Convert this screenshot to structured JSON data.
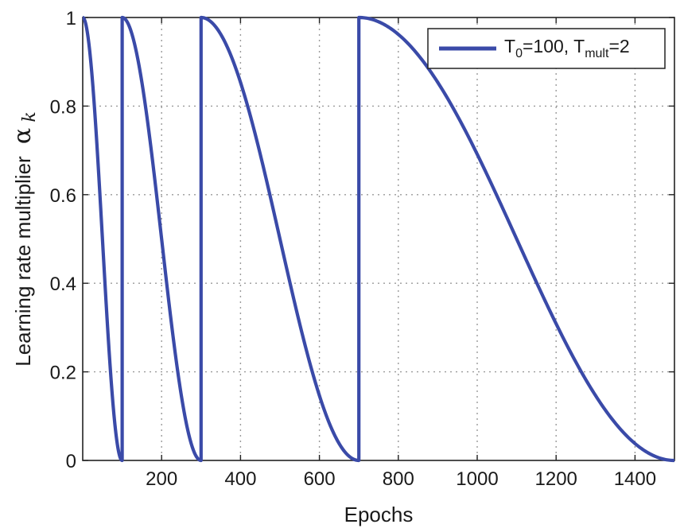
{
  "chart_data": {
    "type": "line",
    "xlabel": "Epochs",
    "ylabel": "Learning rate multiplier",
    "ylabel_symbol": "α",
    "ylabel_symbol_sub": "k",
    "xlim": [
      0,
      1500
    ],
    "ylim": [
      0,
      1
    ],
    "xticks": [
      200,
      400,
      600,
      800,
      1000,
      1200,
      1400
    ],
    "yticks": [
      0,
      0.2,
      0.4,
      0.6,
      0.8,
      1
    ],
    "xtick_labels": [
      "200",
      "400",
      "600",
      "800",
      "1000",
      "1200",
      "1400"
    ],
    "ytick_labels": [
      "0",
      "0.2",
      "0.4",
      "0.6",
      "0.8",
      "1"
    ],
    "grid": true,
    "legend_position": "top-right",
    "series": [
      {
        "name": "T0=100, Tmult=2",
        "name_parts": {
          "t0": "T",
          "t0_sub": "0",
          "t0_val": "=100, ",
          "tm": "T",
          "tm_sub": "mult",
          "tm_val": "=2"
        },
        "color": "#3a4aa8",
        "schedule": "cosine annealing with warm restarts",
        "restart_epochs": [
          100,
          300,
          700
        ],
        "period_lengths": [
          100,
          200,
          400,
          800
        ],
        "max": 1,
        "min": 0
      }
    ]
  }
}
